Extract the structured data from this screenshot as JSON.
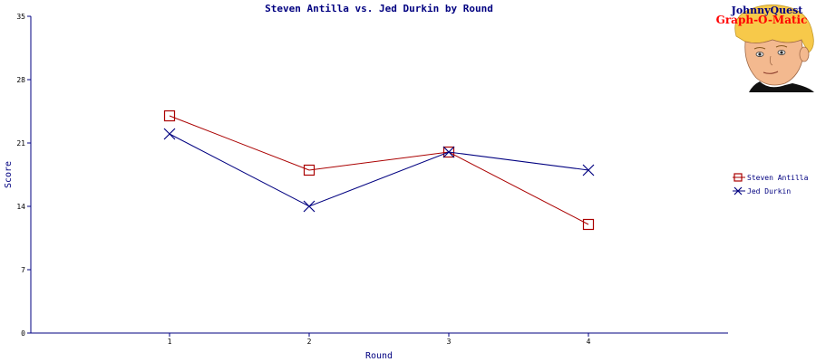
{
  "chart_data": {
    "type": "line",
    "title": "Steven Antilla vs. Jed Durkin by Round",
    "xlabel": "Round",
    "ylabel": "Score",
    "categories": [
      "1",
      "2",
      "3",
      "4"
    ],
    "ylim": [
      0,
      35
    ],
    "yticks": [
      "0",
      "7",
      "14",
      "21",
      "28",
      "35"
    ],
    "grid": false,
    "legend_position": "right",
    "series": [
      {
        "name": "Steven Antilla",
        "values": [
          24,
          18,
          20,
          12
        ],
        "color": "#aa0000",
        "marker": "square"
      },
      {
        "name": "Jed Durkin",
        "values": [
          22,
          14,
          20,
          18
        ],
        "color": "#000080",
        "marker": "x"
      }
    ]
  },
  "logo": {
    "line1": "JohnnyQuest",
    "line2": "Graph-O-Matic",
    "icon": "cartoon-boy-face"
  }
}
